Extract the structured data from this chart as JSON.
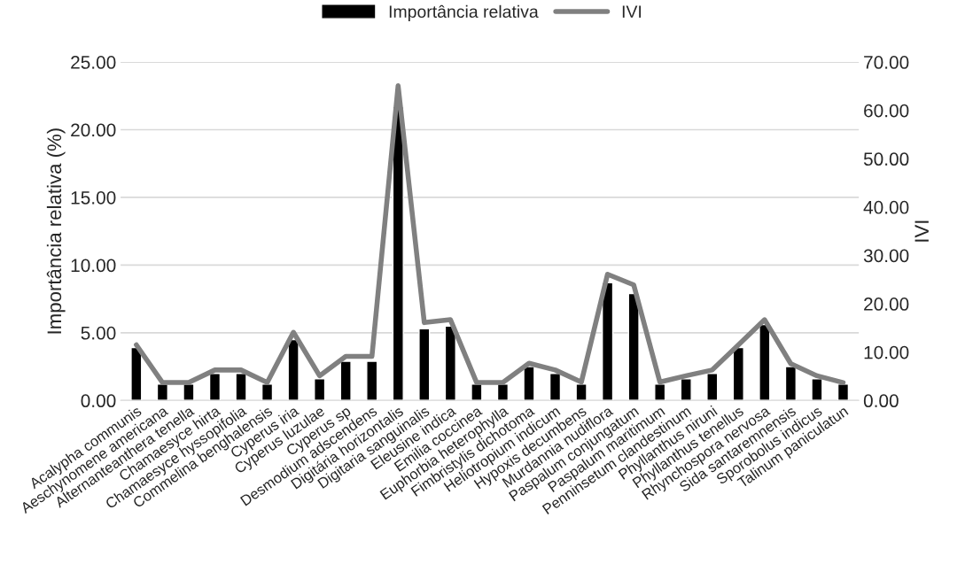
{
  "chart_data": {
    "type": "bar",
    "ylabel": "Importância relativa (%)",
    "y2label": "IVI",
    "categories": [
      "Acalypha communis",
      "Aeschynomene americana",
      "Alternanteanthera tenella",
      "Chamaesyce hirta",
      "Chamaesyce hyssopifolia",
      "Commelina benghalensis",
      "Cyperus iria",
      "Cyperus luzulae",
      "Cyperus sp",
      "Desmodium adscendens",
      "Digitária horizontalis",
      "Digitaria sanguinalis",
      "Eleusine indica",
      "Emilia coccinea",
      "Euphorbia heterophylla",
      "Fimbristylis dichotoma",
      "Heliotropium indicum",
      "Hypoxis decumbens",
      "Murdannia nudiflora",
      "Paspalum conjungatum",
      "Paspalum maritimum",
      "Penninsetum clandestinum",
      "Phyllanthus niruni",
      "Phyllanthus tenellus",
      "Rhynchospora nervosa",
      "Sida santaremnensis",
      "Sporobolus indicus",
      "Talinum paniculatun"
    ],
    "series": [
      {
        "name": "Importância relativa",
        "color": "#000000",
        "values": [
          3.9,
          1.2,
          1.2,
          2.0,
          2.0,
          1.2,
          4.5,
          1.6,
          2.9,
          2.9,
          21.7,
          5.3,
          5.5,
          1.2,
          1.2,
          2.5,
          2.0,
          1.2,
          8.7,
          7.9,
          1.2,
          1.6,
          2.0,
          3.9,
          5.6,
          2.5,
          1.6,
          1.2
        ]
      },
      {
        "name": "IVI",
        "type": "line",
        "axis": "y2",
        "color": "#808080",
        "values": [
          11.5,
          3.7,
          3.7,
          6.3,
          6.3,
          3.7,
          14.1,
          5.1,
          9.1,
          9.1,
          65.1,
          16.1,
          16.7,
          3.7,
          3.7,
          7.7,
          6.3,
          3.8,
          26.1,
          23.9,
          3.8,
          5.1,
          6.3,
          11.5,
          16.7,
          7.6,
          5.1,
          3.7
        ]
      }
    ],
    "ylim": [
      0,
      25
    ],
    "yticks": [
      {
        "value": 0,
        "label": "0.00"
      },
      {
        "value": 5,
        "label": "5.00"
      },
      {
        "value": 10,
        "label": "10.00"
      },
      {
        "value": 15,
        "label": "15.00"
      },
      {
        "value": 20,
        "label": "20.00"
      },
      {
        "value": 25,
        "label": "25.00"
      }
    ],
    "y2lim": [
      0,
      70
    ],
    "y2ticks": [
      {
        "value": 0,
        "label": "0.00"
      },
      {
        "value": 10,
        "label": "10.00"
      },
      {
        "value": 20,
        "label": "20.00"
      },
      {
        "value": 30,
        "label": "30.00"
      },
      {
        "value": 40,
        "label": "40.00"
      },
      {
        "value": 50,
        "label": "50.00"
      },
      {
        "value": 60,
        "label": "60.00"
      },
      {
        "value": 70,
        "label": "70.00"
      }
    ],
    "grid": "y",
    "legend": "top",
    "marker": "none",
    "line_style": "solid"
  }
}
